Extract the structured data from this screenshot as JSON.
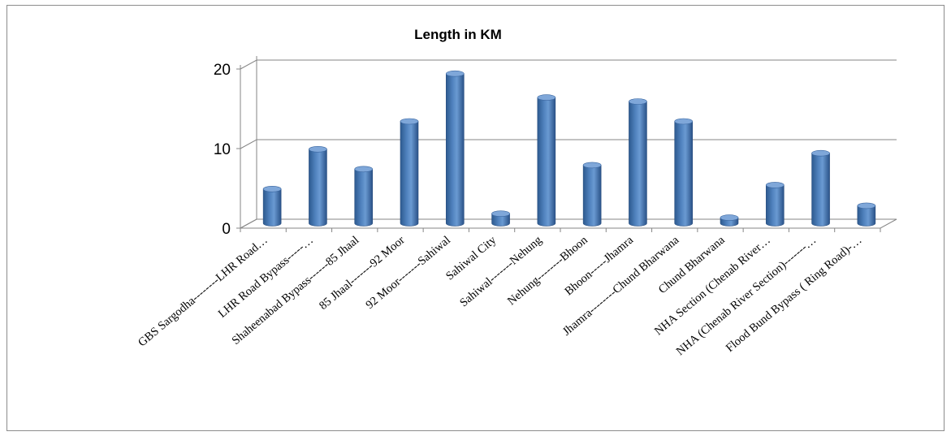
{
  "chart_data": {
    "type": "bar",
    "title": "Length in KM",
    "xlabel": "",
    "ylabel": "",
    "ylim": [
      0,
      20
    ],
    "yticks": [
      0,
      10,
      20
    ],
    "grid": true,
    "legend": "none",
    "bar_color": "#4f81bd",
    "categories": [
      "GBS Sargodha--------LHR Road…",
      "LHR Road Bypass-----…",
      "Shaheenabad Bypass------85 Jhaal",
      "85 Jhaal-------92 Moor",
      "92 Moor-------Sahiwal",
      "Sahiwal City",
      "Sahiwal-------Nehung",
      "Nehung--------Bhoon",
      "Bhoon-----Jhamra",
      "Jhamra--------Chund Bharwana",
      "Chund Bharwana",
      "NHA Section (Chenab River…",
      "NHA (Chenab River Section)-------…",
      "Flood Bund Bypass ( Ring Road)-…"
    ],
    "values": [
      4.3,
      9.3,
      6.8,
      12.8,
      18.8,
      1.2,
      15.8,
      7.3,
      15.3,
      12.8,
      0.7,
      4.8,
      8.8,
      2.2
    ]
  }
}
